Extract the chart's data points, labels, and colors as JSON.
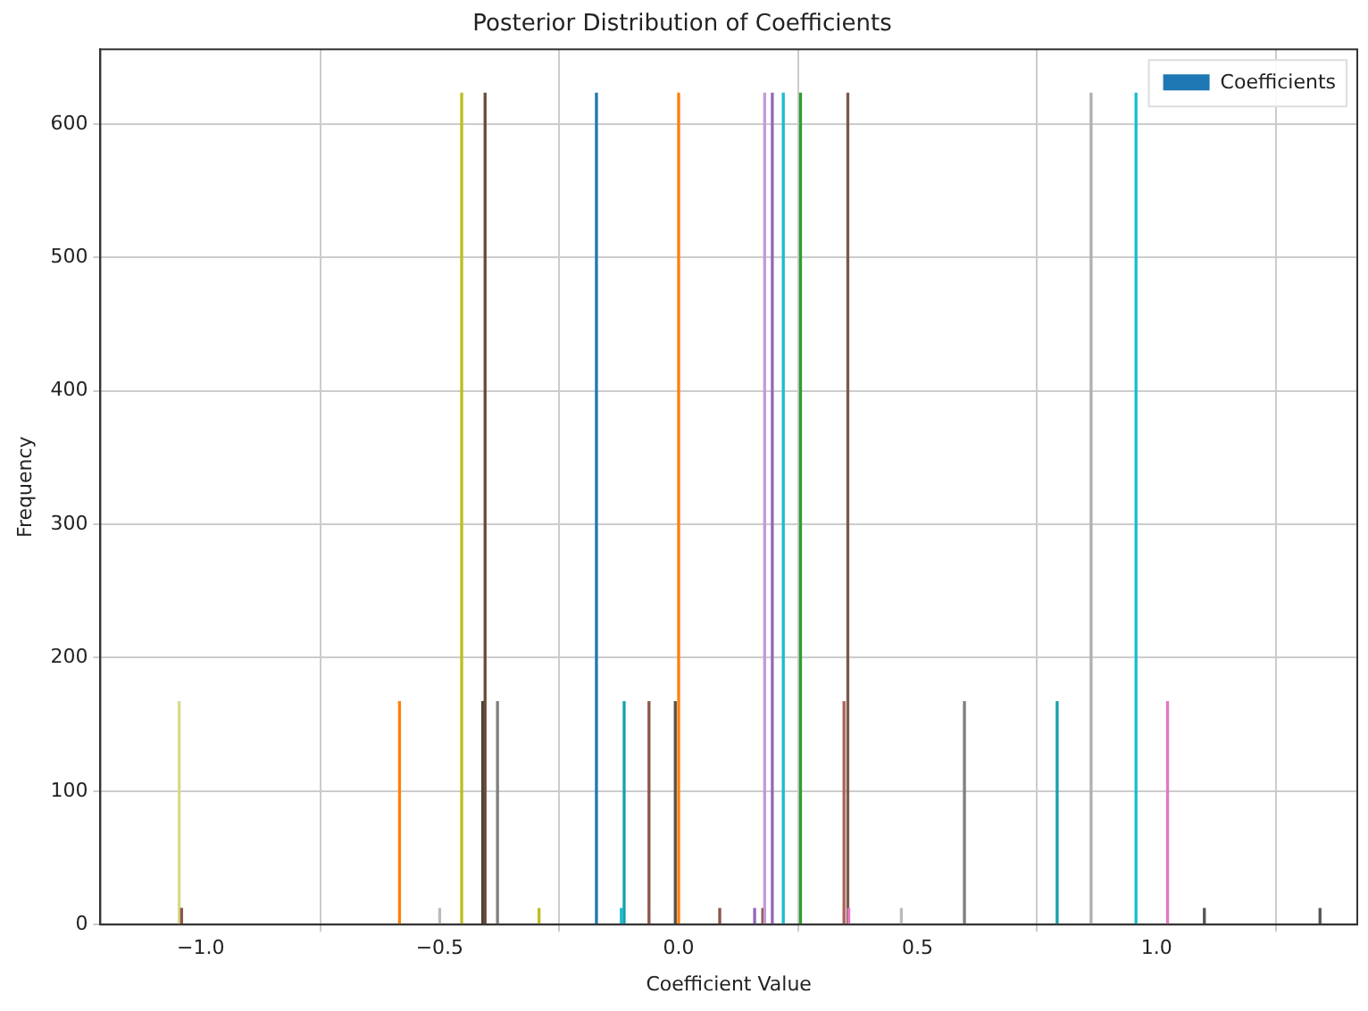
{
  "chart_data": {
    "type": "bar",
    "title": "Posterior Distribution of Coefficients",
    "xlabel": "Coefficient Value",
    "ylabel": "Frequency",
    "series": [
      {
        "name": "Coefficients",
        "color": "#1f77b4",
        "x": [
          -1.045,
          -1.04,
          -0.584,
          -0.5,
          -0.454,
          -0.41,
          -0.405,
          -0.379,
          -0.292,
          -0.172,
          -0.12,
          -0.114,
          -0.062,
          -0.007,
          0.0,
          0.086,
          0.159,
          0.176,
          0.18,
          0.196,
          0.219,
          0.255,
          0.346,
          0.354,
          0.356,
          0.466,
          0.598,
          0.792,
          0.863,
          0.957,
          1.023,
          1.1,
          1.342
        ],
        "values": [
          167,
          12,
          167,
          12,
          623,
          167,
          623,
          167,
          12,
          623,
          12,
          167,
          167,
          167,
          623,
          12,
          12,
          12,
          623,
          623,
          623,
          623,
          167,
          623,
          12,
          12,
          167,
          167,
          623,
          623,
          167,
          12,
          12
        ],
        "colors": [
          "#d9d98a",
          "#8c564b",
          "#ff7f0e",
          "#bbbbbb",
          "#bcbd22",
          "#4d4533",
          "#6b4a3a",
          "#7f7f7f",
          "#bcbd22",
          "#1f77b4",
          "#17becf",
          "#17a0b0",
          "#8c564b",
          "#5a5248",
          "#ff7f0e",
          "#8c564b",
          "#9467bd",
          "#8c564b",
          "#c49bd6",
          "#9467bd",
          "#17becf",
          "#2ca02c",
          "#b0605a",
          "#7a5a4a",
          "#e377c2",
          "#bbbbbb",
          "#7f7f7f",
          "#17a0b0",
          "#b0b0b0",
          "#17becf",
          "#e377c2",
          "#555555",
          "#555555"
        ]
      }
    ],
    "xlim": [
      -1.21,
      1.42
    ],
    "xticks": [
      {
        "value": -1.0,
        "label": "−1.0"
      },
      {
        "value": -0.5,
        "label": "−0.5"
      },
      {
        "value": 0.0,
        "label": "0.0"
      },
      {
        "value": 0.5,
        "label": "0.5"
      },
      {
        "value": 1.0,
        "label": "1.0"
      }
    ],
    "ylim": [
      0,
      656
    ],
    "yticks": [
      0,
      100,
      200,
      300,
      400,
      500,
      600
    ],
    "grid": true,
    "legend": "top right"
  }
}
